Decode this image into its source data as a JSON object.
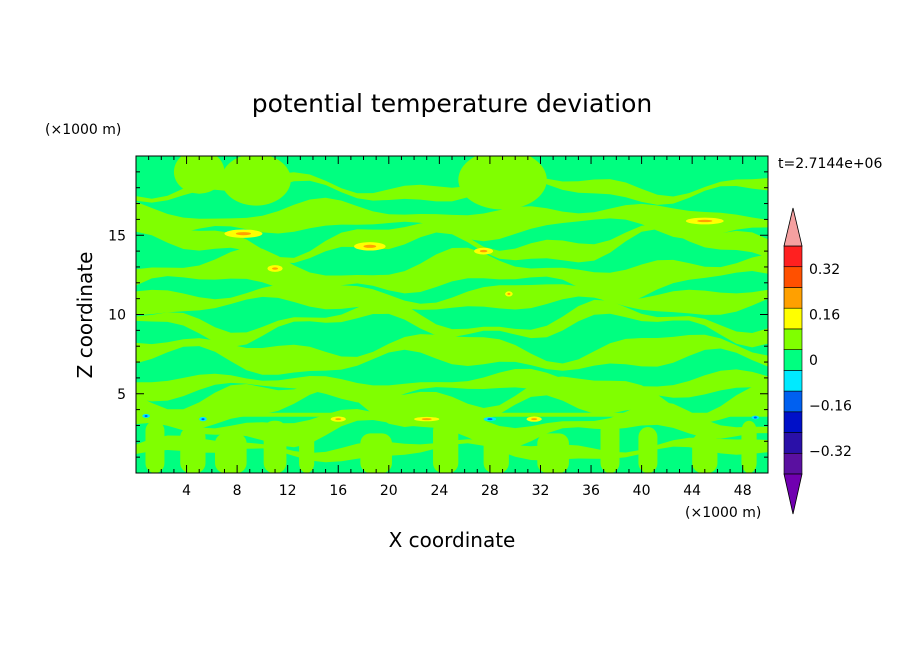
{
  "chart_data": {
    "type": "heatmap",
    "title": "potential temperature deviation",
    "xlabel": "X coordinate",
    "ylabel": "Z coordinate",
    "x_unit": "(×1000 m)",
    "y_unit": "(×1000 m)",
    "time_label": "t=2.7144e+06",
    "xlim": [
      0,
      50
    ],
    "ylim": [
      0,
      20
    ],
    "x_ticks": [
      4,
      8,
      12,
      16,
      20,
      24,
      28,
      32,
      36,
      40,
      44,
      48
    ],
    "y_ticks": [
      5,
      10,
      15
    ],
    "colorbar": {
      "levels": [
        -0.4,
        -0.32,
        -0.24,
        -0.16,
        -0.08,
        0,
        0.08,
        0.16,
        0.24,
        0.32,
        0.4
      ],
      "colors": [
        "#5a10a0",
        "#2a10a8",
        "#0010c8",
        "#0060f0",
        "#00eaff",
        "#00ff80",
        "#80ff00",
        "#ffff00",
        "#ffa000",
        "#ff5000",
        "#ff2020"
      ],
      "under_color": "#7000b0",
      "over_color": "#f5a0a0",
      "tick_labels": [
        {
          "value": 0.32,
          "label": "0.32"
        },
        {
          "value": 0.16,
          "label": "0.16"
        },
        {
          "value": 0,
          "label": "0"
        },
        {
          "value": -0.16,
          "label": "−0.16"
        },
        {
          "value": -0.32,
          "label": "−0.32"
        }
      ]
    },
    "background_level_color": "#00ff80",
    "features": {
      "warm_bands_z": [
        1.5,
        3.0,
        4.5,
        5.5,
        7.5,
        9.5,
        11.0,
        12.5,
        14.5,
        16.0,
        18.0
      ],
      "warm_spots": [
        {
          "x": 8.5,
          "z": 15.1,
          "w": 3.0,
          "h": 0.4
        },
        {
          "x": 18.5,
          "z": 14.3,
          "w": 2.5,
          "h": 0.4
        },
        {
          "x": 27.5,
          "z": 14.0,
          "w": 1.5,
          "h": 0.3
        },
        {
          "x": 45.0,
          "z": 15.9,
          "w": 3.0,
          "h": 0.3
        },
        {
          "x": 11.0,
          "z": 12.9,
          "w": 1.2,
          "h": 0.3
        },
        {
          "x": 29.5,
          "z": 11.3,
          "w": 0.6,
          "h": 0.2
        },
        {
          "x": 16.0,
          "z": 3.4,
          "w": 1.2,
          "h": 0.2
        },
        {
          "x": 23.0,
          "z": 3.4,
          "w": 2.0,
          "h": 0.15
        },
        {
          "x": 31.5,
          "z": 3.4,
          "w": 1.2,
          "h": 0.2
        }
      ],
      "cool_spots": [
        {
          "x": 5.3,
          "z": 3.4,
          "w": 0.6,
          "h": 0.15
        },
        {
          "x": 28.0,
          "z": 3.4,
          "w": 1.0,
          "h": 0.12
        },
        {
          "x": 0.8,
          "z": 3.6,
          "w": 0.6,
          "h": 0.12
        },
        {
          "x": 49.0,
          "z": 3.5,
          "w": 0.6,
          "h": 0.12
        }
      ],
      "upper_blobs": [
        {
          "x": 5.0,
          "z": 19.0,
          "w": 4.0,
          "h": 2.0
        },
        {
          "x": 9.5,
          "z": 18.5,
          "w": 5.5,
          "h": 2.5
        },
        {
          "x": 29.0,
          "z": 18.5,
          "w": 7.0,
          "h": 3.0
        }
      ],
      "lower_columns": [
        {
          "x": 1.5,
          "w": 1.5
        },
        {
          "x": 4.5,
          "w": 2.0
        },
        {
          "x": 7.5,
          "w": 2.5
        },
        {
          "x": 11.0,
          "w": 1.8
        },
        {
          "x": 13.5,
          "w": 1.2
        },
        {
          "x": 19.0,
          "w": 2.5
        },
        {
          "x": 24.5,
          "w": 2.0
        },
        {
          "x": 28.5,
          "w": 2.0
        },
        {
          "x": 33.0,
          "w": 2.5
        },
        {
          "x": 37.5,
          "w": 1.5
        },
        {
          "x": 40.5,
          "w": 1.5
        },
        {
          "x": 45.0,
          "w": 2.0
        },
        {
          "x": 48.5,
          "w": 1.2
        }
      ]
    }
  }
}
